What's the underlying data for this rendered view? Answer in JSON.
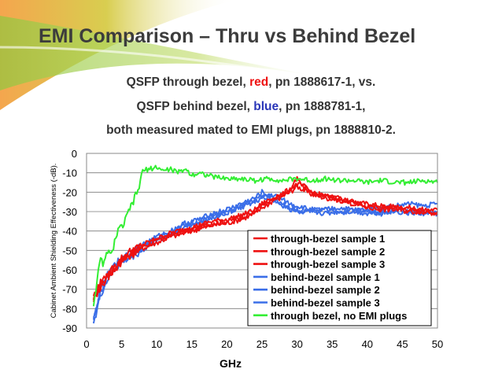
{
  "slide": {
    "title": "EMI Comparison – Thru vs Behind Bezel"
  },
  "caption": {
    "line1": {
      "pre": "QSFP through bezel, ",
      "highlight": "red",
      "post": ", pn 1888617-1, vs."
    },
    "line2": {
      "pre": "QSFP behind bezel, ",
      "highlight": "blue",
      "post": ", pn 1888781-1,"
    },
    "line3": "both measured mated to EMI plugs, pn 1888810-2."
  },
  "colors": {
    "red": "#ee1111",
    "blue": "#3a6ee8",
    "green": "#33ee33",
    "title": "#3c3c3c",
    "text": "#333333"
  },
  "chart_data": {
    "type": "line",
    "title": "",
    "xlabel": "GHz",
    "ylabel": "Cabinet Ambient Shielding Effectiveness (-dB).",
    "xlim": [
      0,
      50
    ],
    "ylim": [
      -90,
      0
    ],
    "xticks": [
      0,
      5,
      10,
      15,
      20,
      25,
      30,
      35,
      40,
      45,
      50
    ],
    "yticks": [
      0,
      -10,
      -20,
      -30,
      -40,
      -50,
      -60,
      -70,
      -80,
      -90
    ],
    "grid": "horizontal",
    "legend_position": "bottom-right",
    "series": [
      {
        "name": "through-bezel sample 1",
        "color": "#ee1111",
        "x": [
          1,
          1.5,
          2,
          3,
          4,
          5,
          6,
          8,
          10,
          12,
          14,
          16,
          18,
          20,
          22,
          24,
          25,
          26,
          27,
          28,
          29,
          30,
          31,
          32,
          34,
          36,
          38,
          40,
          42,
          44,
          46,
          48,
          50
        ],
        "y": [
          -75,
          -70,
          -68,
          -63,
          -60,
          -55,
          -52,
          -48,
          -45,
          -42,
          -40,
          -38,
          -36,
          -35,
          -33,
          -30,
          -27,
          -25,
          -24,
          -22,
          -20,
          -17,
          -19,
          -21,
          -23,
          -24,
          -25,
          -26,
          -27,
          -28,
          -29,
          -30,
          -31
        ]
      },
      {
        "name": "through-bezel sample 2",
        "color": "#ee1111",
        "x": [
          1,
          1.5,
          2,
          3,
          4,
          5,
          6,
          8,
          10,
          12,
          14,
          16,
          18,
          20,
          22,
          24,
          25,
          26,
          27,
          28,
          29,
          30,
          31,
          32,
          34,
          36,
          38,
          40,
          42,
          44,
          46,
          48,
          50
        ],
        "y": [
          -74,
          -72,
          -66,
          -62,
          -58,
          -56,
          -53,
          -49,
          -46,
          -43,
          -41,
          -39,
          -37,
          -36,
          -34,
          -31,
          -28,
          -26,
          -23,
          -21,
          -19,
          -13,
          -18,
          -20,
          -22,
          -23,
          -25,
          -27,
          -28,
          -27,
          -28,
          -29,
          -29
        ]
      },
      {
        "name": "through-bezel sample 3",
        "color": "#ee1111",
        "x": [
          1,
          1.5,
          2,
          3,
          4,
          5,
          6,
          8,
          10,
          12,
          14,
          16,
          18,
          20,
          22,
          24,
          25,
          26,
          27,
          28,
          29,
          30,
          31,
          32,
          34,
          36,
          38,
          40,
          42,
          44,
          46,
          48,
          50
        ],
        "y": [
          -76,
          -71,
          -69,
          -64,
          -59,
          -54,
          -51,
          -47,
          -44,
          -41,
          -39,
          -37,
          -35,
          -34,
          -32,
          -29,
          -26,
          -24,
          -22,
          -21,
          -18,
          -16,
          -17,
          -20,
          -22,
          -24,
          -26,
          -28,
          -29,
          -29,
          -30,
          -30,
          -30
        ]
      },
      {
        "name": "behind-bezel sample 1",
        "color": "#3a6ee8",
        "x": [
          1,
          1.5,
          2,
          3,
          4,
          5,
          6,
          8,
          10,
          12,
          14,
          16,
          18,
          20,
          22,
          24,
          25,
          26,
          27,
          28,
          29,
          30,
          31,
          32,
          34,
          36,
          38,
          40,
          42,
          44,
          46,
          48,
          50
        ],
        "y": [
          -88,
          -80,
          -70,
          -62,
          -57,
          -54,
          -52,
          -48,
          -44,
          -41,
          -37,
          -35,
          -33,
          -30,
          -28,
          -25,
          -23,
          -21,
          -22,
          -24,
          -26,
          -27,
          -28,
          -29,
          -29,
          -28,
          -29,
          -29,
          -28,
          -27,
          -26,
          -27,
          -26
        ]
      },
      {
        "name": "behind-bezel sample 2",
        "color": "#3a6ee8",
        "x": [
          1,
          1.5,
          2,
          3,
          4,
          5,
          6,
          8,
          10,
          12,
          14,
          16,
          18,
          20,
          22,
          24,
          25,
          26,
          27,
          28,
          29,
          30,
          31,
          32,
          34,
          36,
          38,
          40,
          42,
          44,
          46,
          48,
          50
        ],
        "y": [
          -86,
          -78,
          -72,
          -64,
          -58,
          -55,
          -53,
          -47,
          -43,
          -40,
          -36,
          -34,
          -31,
          -29,
          -26,
          -23,
          -20,
          -22,
          -24,
          -26,
          -28,
          -30,
          -31,
          -30,
          -31,
          -30,
          -30,
          -31,
          -30,
          -30,
          -31,
          -30,
          -31
        ]
      },
      {
        "name": "behind-bezel sample 3",
        "color": "#3a6ee8",
        "x": [
          1,
          1.5,
          2,
          3,
          4,
          5,
          6,
          8,
          10,
          12,
          14,
          16,
          18,
          20,
          22,
          24,
          25,
          26,
          27,
          28,
          29,
          30,
          31,
          32,
          34,
          36,
          38,
          40,
          42,
          44,
          46,
          48,
          50
        ],
        "y": [
          -84,
          -79,
          -73,
          -65,
          -60,
          -56,
          -54,
          -50,
          -45,
          -42,
          -38,
          -36,
          -32,
          -31,
          -27,
          -24,
          -22,
          -23,
          -25,
          -27,
          -29,
          -29,
          -30,
          -29,
          -29,
          -31,
          -29,
          -30,
          -31,
          -29,
          -30,
          -31,
          -30
        ]
      },
      {
        "name": "through bezel, no EMI plugs",
        "color": "#33ee33",
        "x": [
          1,
          1.5,
          2,
          2.5,
          3,
          3.5,
          4,
          4.5,
          5,
          5.5,
          6,
          6.5,
          7,
          7.5,
          8,
          9,
          10,
          11,
          12,
          13,
          14,
          15,
          16,
          18,
          20,
          22,
          24,
          26,
          28,
          30,
          32,
          34,
          36,
          38,
          40,
          42,
          44,
          46,
          48,
          50
        ],
        "y": [
          -78,
          -65,
          -55,
          -57,
          -50,
          -53,
          -45,
          -40,
          -38,
          -35,
          -30,
          -26,
          -22,
          -17,
          -9,
          -8,
          -7,
          -9,
          -8,
          -10,
          -8,
          -11,
          -10,
          -12,
          -13,
          -13,
          -14,
          -13,
          -14,
          -13,
          -14,
          -13,
          -14,
          -14,
          -15,
          -14,
          -15,
          -15,
          -14,
          -15
        ]
      }
    ]
  }
}
